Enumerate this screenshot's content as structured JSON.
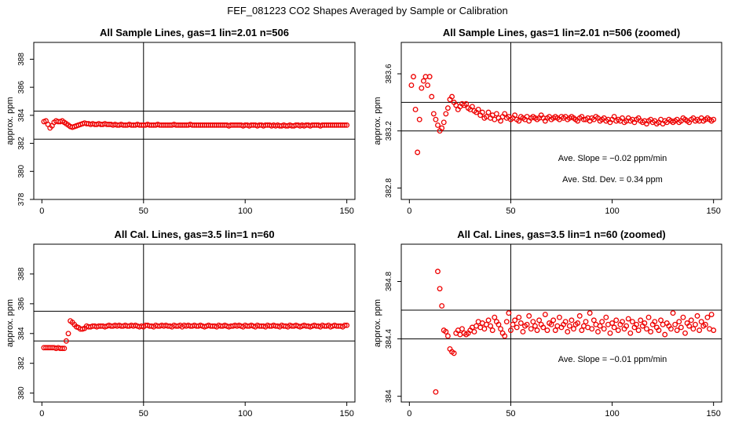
{
  "figure_title": "FEF_081223  CO2 Shapes Averaged by Sample or Calibration",
  "colors": {
    "points": "#ee0000",
    "axes": "#000000",
    "background": "#ffffff"
  },
  "chart_data": [
    {
      "type": "scatter",
      "title": "All Sample Lines, gas=1 lin=2.01 n=506",
      "ylabel": "approx. ppm",
      "xlabel": "",
      "xlim": [
        -4,
        154
      ],
      "ylim": [
        378.0,
        389.2
      ],
      "xticks": [
        0,
        50,
        100,
        150
      ],
      "yticks": [
        378,
        380,
        382,
        384,
        386,
        388
      ],
      "hlines": [
        384.3,
        382.3
      ],
      "vline": 50,
      "annotations": [],
      "x": [
        1,
        2,
        3,
        4,
        5,
        6,
        7,
        8,
        9,
        10,
        11,
        12,
        13,
        14,
        15,
        16,
        17,
        18,
        19,
        20,
        21,
        22,
        23,
        24,
        25,
        26,
        27,
        28,
        29,
        30,
        31,
        32,
        33,
        34,
        35,
        36,
        37,
        38,
        39,
        40,
        41,
        42,
        43,
        44,
        45,
        46,
        47,
        48,
        49,
        50,
        51,
        52,
        53,
        54,
        55,
        56,
        57,
        58,
        59,
        60,
        61,
        62,
        63,
        64,
        65,
        66,
        67,
        68,
        69,
        70,
        71,
        72,
        73,
        74,
        75,
        76,
        77,
        78,
        79,
        80,
        81,
        82,
        83,
        84,
        85,
        86,
        87,
        88,
        89,
        90,
        91,
        92,
        93,
        94,
        95,
        96,
        97,
        98,
        99,
        100,
        101,
        102,
        103,
        104,
        105,
        106,
        107,
        108,
        109,
        110,
        111,
        112,
        113,
        114,
        115,
        116,
        117,
        118,
        119,
        120,
        121,
        122,
        123,
        124,
        125,
        126,
        127,
        128,
        129,
        130,
        131,
        132,
        133,
        134,
        135,
        136,
        137,
        138,
        139,
        140,
        141,
        142,
        143,
        144,
        145,
        146,
        147,
        148,
        149,
        150
      ],
      "y": [
        383.55,
        383.6,
        383.35,
        383.1,
        383.25,
        383.5,
        383.6,
        383.55,
        383.55,
        383.6,
        383.5,
        383.4,
        383.3,
        383.2,
        383.15,
        383.2,
        383.25,
        383.3,
        383.35,
        383.4,
        383.45,
        383.4,
        383.4,
        383.35,
        383.4,
        383.35,
        383.35,
        383.4,
        383.35,
        383.35,
        383.4,
        383.35,
        383.35,
        383.35,
        383.3,
        383.35,
        383.3,
        383.3,
        383.35,
        383.3,
        383.3,
        383.3,
        383.35,
        383.3,
        383.3,
        383.3,
        383.35,
        383.3,
        383.3,
        383.3,
        383.3,
        383.35,
        383.3,
        383.3,
        383.3,
        383.3,
        383.35,
        383.3,
        383.3,
        383.3,
        383.3,
        383.3,
        383.3,
        383.3,
        383.35,
        383.3,
        383.3,
        383.3,
        383.3,
        383.3,
        383.3,
        383.3,
        383.35,
        383.3,
        383.3,
        383.3,
        383.3,
        383.3,
        383.3,
        383.3,
        383.3,
        383.3,
        383.3,
        383.3,
        383.3,
        383.3,
        383.3,
        383.3,
        383.3,
        383.3,
        383.3,
        383.25,
        383.3,
        383.3,
        383.3,
        383.3,
        383.3,
        383.3,
        383.25,
        383.3,
        383.3,
        383.25,
        383.3,
        383.3,
        383.3,
        383.25,
        383.3,
        383.3,
        383.25,
        383.3,
        383.3,
        383.3,
        383.25,
        383.3,
        383.25,
        383.3,
        383.25,
        383.25,
        383.3,
        383.25,
        383.25,
        383.3,
        383.25,
        383.25,
        383.3,
        383.3,
        383.25,
        383.3,
        383.25,
        383.3,
        383.3,
        383.25,
        383.3,
        383.3,
        383.3,
        383.3,
        383.25,
        383.3,
        383.3,
        383.3,
        383.3,
        383.3,
        383.3,
        383.3,
        383.3,
        383.3,
        383.3,
        383.3,
        383.3,
        383.3
      ]
    },
    {
      "type": "scatter",
      "title": "All Sample Lines, gas=1 lin=2.01 n=506 (zoomed)",
      "ylabel": "approx. ppm",
      "xlabel": "",
      "xlim": [
        -4,
        154
      ],
      "ylim": [
        382.72,
        383.82
      ],
      "xticks": [
        0,
        50,
        100,
        150
      ],
      "yticks": [
        382.8,
        383.2,
        383.6
      ],
      "hlines": [
        383.4,
        383.2
      ],
      "vline": 50,
      "annotations": [
        "Ave. Slope =  −0.02  ppm/min",
        "Ave. Std. Dev. =  0.34  ppm"
      ],
      "x": [
        1,
        2,
        3,
        4,
        5,
        6,
        7,
        8,
        9,
        10,
        11,
        12,
        13,
        14,
        15,
        16,
        17,
        18,
        19,
        20,
        21,
        22,
        23,
        24,
        25,
        26,
        27,
        28,
        29,
        30,
        31,
        32,
        33,
        34,
        35,
        36,
        37,
        38,
        39,
        40,
        41,
        42,
        43,
        44,
        45,
        46,
        47,
        48,
        49,
        50,
        51,
        52,
        53,
        54,
        55,
        56,
        57,
        58,
        59,
        60,
        61,
        62,
        63,
        64,
        65,
        66,
        67,
        68,
        69,
        70,
        71,
        72,
        73,
        74,
        75,
        76,
        77,
        78,
        79,
        80,
        81,
        82,
        83,
        84,
        85,
        86,
        87,
        88,
        89,
        90,
        91,
        92,
        93,
        94,
        95,
        96,
        97,
        98,
        99,
        100,
        101,
        102,
        103,
        104,
        105,
        106,
        107,
        108,
        109,
        110,
        111,
        112,
        113,
        114,
        115,
        116,
        117,
        118,
        119,
        120,
        121,
        122,
        123,
        124,
        125,
        126,
        127,
        128,
        129,
        130,
        131,
        132,
        133,
        134,
        135,
        136,
        137,
        138,
        139,
        140,
        141,
        142,
        143,
        144,
        145,
        146,
        147,
        148,
        149,
        150
      ],
      "y": [
        383.52,
        383.58,
        383.35,
        383.05,
        383.28,
        383.5,
        383.55,
        383.58,
        383.52,
        383.58,
        383.44,
        383.32,
        383.28,
        383.24,
        383.2,
        383.22,
        383.26,
        383.32,
        383.36,
        383.42,
        383.44,
        383.4,
        383.38,
        383.35,
        383.37,
        383.39,
        383.38,
        383.39,
        383.36,
        383.35,
        383.37,
        383.34,
        383.33,
        383.35,
        383.31,
        383.33,
        383.29,
        383.3,
        383.33,
        383.29,
        383.31,
        383.28,
        383.32,
        383.29,
        383.27,
        383.3,
        383.32,
        383.29,
        383.3,
        383.28,
        383.29,
        383.31,
        383.28,
        383.27,
        383.3,
        383.29,
        383.28,
        383.3,
        383.27,
        383.29,
        383.3,
        383.29,
        383.28,
        383.29,
        383.31,
        383.29,
        383.27,
        383.29,
        383.3,
        383.28,
        383.29,
        383.3,
        383.29,
        383.28,
        383.3,
        383.29,
        383.3,
        383.28,
        383.29,
        383.3,
        383.29,
        383.28,
        383.27,
        383.29,
        383.3,
        383.28,
        383.28,
        383.29,
        383.27,
        383.29,
        383.28,
        383.3,
        383.29,
        383.27,
        383.28,
        383.29,
        383.27,
        383.28,
        383.26,
        383.28,
        383.3,
        383.27,
        383.28,
        383.27,
        383.29,
        383.26,
        383.27,
        383.29,
        383.27,
        383.28,
        383.26,
        383.28,
        383.29,
        383.27,
        383.26,
        383.27,
        383.25,
        383.27,
        383.28,
        383.26,
        383.27,
        383.25,
        383.26,
        383.28,
        383.25,
        383.27,
        383.26,
        383.28,
        383.27,
        383.26,
        383.27,
        383.28,
        383.26,
        383.27,
        383.29,
        383.28,
        383.27,
        383.26,
        383.28,
        383.29,
        383.27,
        383.28,
        383.27,
        383.29,
        383.27,
        383.28,
        383.29,
        383.28,
        383.27,
        383.28
      ]
    },
    {
      "type": "scatter",
      "title": "All Cal. Lines, gas=3.5 lin=1 n=60",
      "ylabel": "approx. ppm",
      "xlabel": "",
      "xlim": [
        -4,
        154
      ],
      "ylim": [
        379.4,
        390.0
      ],
      "xticks": [
        0,
        50,
        100,
        150
      ],
      "yticks": [
        380,
        382,
        384,
        386,
        388
      ],
      "hlines": [
        385.5,
        383.5
      ],
      "vline": 50,
      "annotations": [],
      "x": [
        1,
        2,
        3,
        4,
        5,
        6,
        7,
        8,
        9,
        10,
        11,
        12,
        13,
        14,
        15,
        16,
        17,
        18,
        19,
        20,
        21,
        22,
        23,
        24,
        25,
        26,
        27,
        28,
        29,
        30,
        31,
        32,
        33,
        34,
        35,
        36,
        37,
        38,
        39,
        40,
        41,
        42,
        43,
        44,
        45,
        46,
        47,
        48,
        49,
        50,
        51,
        52,
        53,
        54,
        55,
        56,
        57,
        58,
        59,
        60,
        61,
        62,
        63,
        64,
        65,
        66,
        67,
        68,
        69,
        70,
        71,
        72,
        73,
        74,
        75,
        76,
        77,
        78,
        79,
        80,
        81,
        82,
        83,
        84,
        85,
        86,
        87,
        88,
        89,
        90,
        91,
        92,
        93,
        94,
        95,
        96,
        97,
        98,
        99,
        100,
        101,
        102,
        103,
        104,
        105,
        106,
        107,
        108,
        109,
        110,
        111,
        112,
        113,
        114,
        115,
        116,
        117,
        118,
        119,
        120,
        121,
        122,
        123,
        124,
        125,
        126,
        127,
        128,
        129,
        130,
        131,
        132,
        133,
        134,
        135,
        136,
        137,
        138,
        139,
        140,
        141,
        142,
        143,
        144,
        145,
        146,
        147,
        148,
        149,
        150
      ],
      "y": [
        383.05,
        383.05,
        383.05,
        383.05,
        383.05,
        383.05,
        383.0,
        383.05,
        383.0,
        383.0,
        383.0,
        383.5,
        384.0,
        384.85,
        384.75,
        384.6,
        384.45,
        384.4,
        384.3,
        384.3,
        384.35,
        384.5,
        384.45,
        384.45,
        384.5,
        384.5,
        384.45,
        384.5,
        384.5,
        384.5,
        384.45,
        384.5,
        384.55,
        384.5,
        384.5,
        384.55,
        384.5,
        384.55,
        384.5,
        384.5,
        384.55,
        384.5,
        384.5,
        384.55,
        384.5,
        384.55,
        384.5,
        384.45,
        384.5,
        384.45,
        384.55,
        384.55,
        384.5,
        384.5,
        384.45,
        384.55,
        384.5,
        384.5,
        384.55,
        384.5,
        384.55,
        384.5,
        384.5,
        384.45,
        384.55,
        384.5,
        384.5,
        384.55,
        384.45,
        384.55,
        384.5,
        384.55,
        384.5,
        384.5,
        384.55,
        384.5,
        384.5,
        384.55,
        384.5,
        384.45,
        384.5,
        384.55,
        384.5,
        384.5,
        384.5,
        384.45,
        384.55,
        384.5,
        384.5,
        384.55,
        384.5,
        384.45,
        384.5,
        384.5,
        384.55,
        384.5,
        384.55,
        384.5,
        384.45,
        384.55,
        384.5,
        384.5,
        384.55,
        384.5,
        384.45,
        384.55,
        384.5,
        384.5,
        384.5,
        384.45,
        384.55,
        384.5,
        384.5,
        384.55,
        384.5,
        384.5,
        384.45,
        384.55,
        384.5,
        384.5,
        384.45,
        384.55,
        384.5,
        384.5,
        384.55,
        384.5,
        384.45,
        384.5,
        384.55,
        384.5,
        384.5,
        384.45,
        384.5,
        384.55,
        384.5,
        384.5,
        384.45,
        384.55,
        384.5,
        384.5,
        384.55,
        384.45,
        384.5,
        384.55,
        384.5,
        384.5,
        384.5,
        384.45,
        384.55,
        384.55
      ]
    },
    {
      "type": "scatter",
      "title": "All Cal. Lines, gas=3.5 lin=1 n=60 (zoomed)",
      "ylabel": "approx. ppm",
      "xlabel": "",
      "xlim": [
        -4,
        154
      ],
      "ylim": [
        383.96,
        385.06
      ],
      "xticks": [
        0,
        50,
        100,
        150
      ],
      "yticks": [
        384.0,
        384.4,
        384.8
      ],
      "hlines": [
        384.6,
        384.4
      ],
      "vline": 50,
      "annotations": [
        "Ave. Slope =  −0.01  ppm/min"
      ],
      "x": [
        13,
        14,
        15,
        16,
        17,
        18,
        19,
        20,
        21,
        22,
        23,
        24,
        25,
        26,
        27,
        28,
        29,
        30,
        31,
        32,
        33,
        34,
        35,
        36,
        37,
        38,
        39,
        40,
        41,
        42,
        43,
        44,
        45,
        46,
        47,
        48,
        49,
        50,
        51,
        52,
        53,
        54,
        55,
        56,
        57,
        58,
        59,
        60,
        61,
        62,
        63,
        64,
        65,
        66,
        67,
        68,
        69,
        70,
        71,
        72,
        73,
        74,
        75,
        76,
        77,
        78,
        79,
        80,
        81,
        82,
        83,
        84,
        85,
        86,
        87,
        88,
        89,
        90,
        91,
        92,
        93,
        94,
        95,
        96,
        97,
        98,
        99,
        100,
        101,
        102,
        103,
        104,
        105,
        106,
        107,
        108,
        109,
        110,
        111,
        112,
        113,
        114,
        115,
        116,
        117,
        118,
        119,
        120,
        121,
        122,
        123,
        124,
        125,
        126,
        127,
        128,
        129,
        130,
        131,
        132,
        133,
        134,
        135,
        136,
        137,
        138,
        139,
        140,
        141,
        142,
        143,
        144,
        145,
        146,
        147,
        148,
        149,
        150
      ],
      "y": [
        384.03,
        384.87,
        384.75,
        384.63,
        384.46,
        384.45,
        384.42,
        384.33,
        384.31,
        384.3,
        384.44,
        384.46,
        384.43,
        384.47,
        384.44,
        384.43,
        384.44,
        384.46,
        384.48,
        384.45,
        384.49,
        384.52,
        384.48,
        384.51,
        384.47,
        384.5,
        384.53,
        384.49,
        384.46,
        384.55,
        384.52,
        384.5,
        384.47,
        384.44,
        384.42,
        384.52,
        384.58,
        384.46,
        384.5,
        384.53,
        384.48,
        384.55,
        384.51,
        384.45,
        384.49,
        384.5,
        384.56,
        384.47,
        384.52,
        384.49,
        384.46,
        384.53,
        384.5,
        384.48,
        384.57,
        384.46,
        384.51,
        384.5,
        384.53,
        384.46,
        384.49,
        384.55,
        384.48,
        384.5,
        384.52,
        384.45,
        384.49,
        384.53,
        384.47,
        384.5,
        384.51,
        384.56,
        384.46,
        384.49,
        384.52,
        384.48,
        384.58,
        384.47,
        384.53,
        384.5,
        384.45,
        384.49,
        384.52,
        384.47,
        384.55,
        384.5,
        384.44,
        384.51,
        384.48,
        384.53,
        384.46,
        384.5,
        384.52,
        384.47,
        384.49,
        384.54,
        384.44,
        384.52,
        384.48,
        384.5,
        384.46,
        384.53,
        384.49,
        384.51,
        384.47,
        384.55,
        384.45,
        384.5,
        384.52,
        384.48,
        384.46,
        384.53,
        384.5,
        384.43,
        384.51,
        384.49,
        384.47,
        384.58,
        384.5,
        384.46,
        384.52,
        384.48,
        384.55,
        384.44,
        384.51,
        384.49,
        384.53,
        384.47,
        384.5,
        384.56,
        384.46,
        384.52,
        384.49,
        384.5,
        384.55,
        384.47,
        384.57,
        384.46
      ]
    }
  ]
}
